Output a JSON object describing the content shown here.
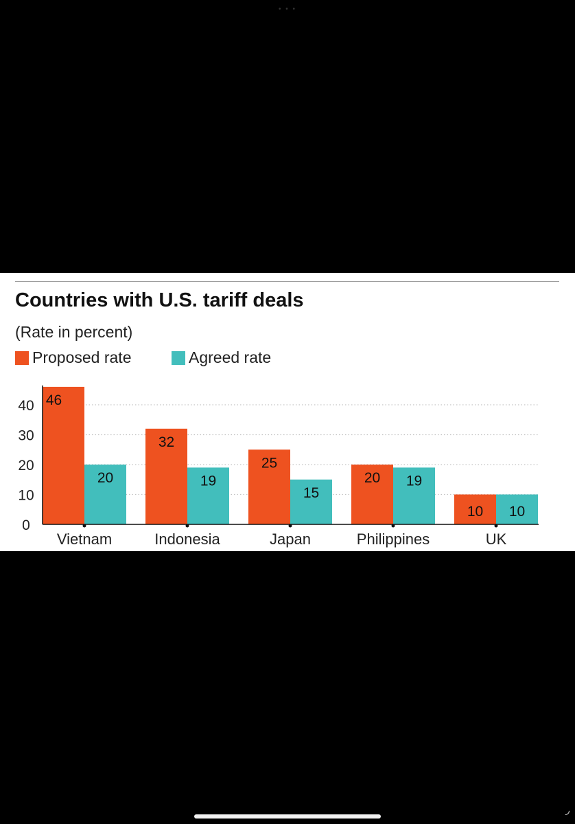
{
  "chart_data": {
    "type": "bar",
    "title": "Countries with U.S. tariff deals",
    "subtitle": "(Rate in percent)",
    "categories": [
      "Vietnam",
      "Indonesia",
      "Japan",
      "Philippines",
      "UK"
    ],
    "series": [
      {
        "name": "Proposed rate",
        "color": "#ee5220",
        "values": [
          46,
          32,
          25,
          20,
          10
        ]
      },
      {
        "name": "Agreed rate",
        "color": "#42bebc",
        "values": [
          20,
          19,
          15,
          19,
          10
        ]
      }
    ],
    "yticks": [
      0,
      10,
      20,
      30,
      40
    ],
    "ylim": [
      0,
      46
    ],
    "grid": true,
    "legend_position": "top-left"
  }
}
